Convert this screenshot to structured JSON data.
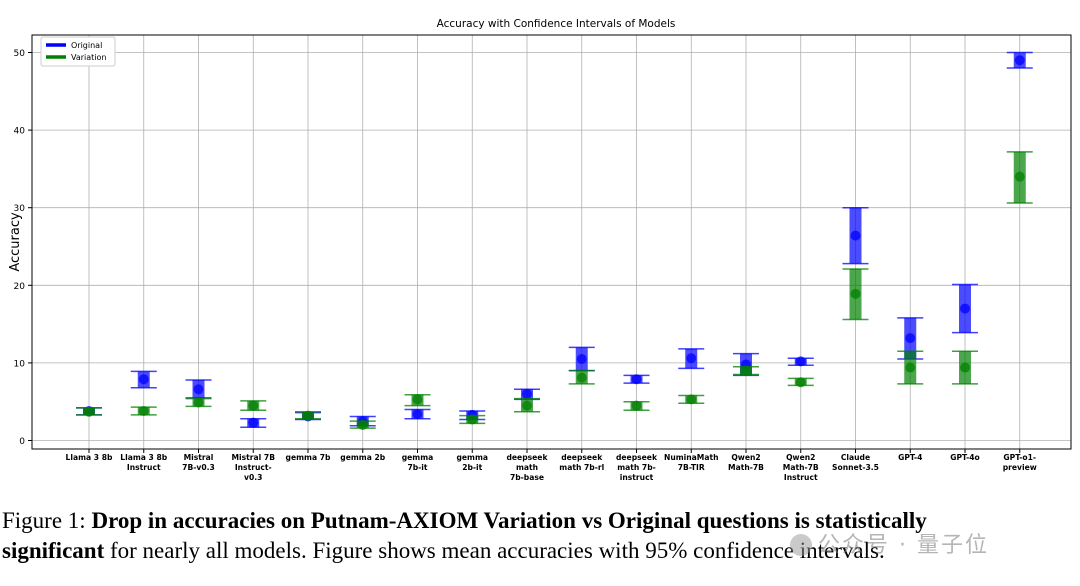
{
  "chart_data": {
    "type": "errorbar",
    "title": "Accuracy with Confidence Intervals of Models",
    "ylabel": "Accuracy",
    "xlabel": "",
    "ylim": [
      -1,
      53
    ],
    "yticks": [
      0,
      10,
      20,
      30,
      40,
      50
    ],
    "grid": true,
    "legend_position": "top-left",
    "categories": [
      [
        "Llama 3 8b"
      ],
      [
        "Llama 3 8b",
        "Instruct"
      ],
      [
        "Mistral",
        "7B-v0.3"
      ],
      [
        "Mistral 7B",
        "Instruct-",
        "v0.3"
      ],
      [
        "gemma 7b"
      ],
      [
        "gemma 2b"
      ],
      [
        "gemma",
        "7b-it"
      ],
      [
        "gemma",
        "2b-it"
      ],
      [
        "deepseek",
        "math",
        "7b-base"
      ],
      [
        "deepseek",
        "math 7b-rl"
      ],
      [
        "deepseek",
        "math 7b-",
        "instruct"
      ],
      [
        "NuminaMath",
        "7B-TIR"
      ],
      [
        "Qwen2",
        "Math-7B"
      ],
      [
        "Qwen2",
        "Math-7B",
        "Instruct"
      ],
      [
        "Claude",
        "Sonnet-3.5"
      ],
      [
        "GPT-4"
      ],
      [
        "GPT-4o"
      ],
      [
        "GPT-o1-",
        "preview"
      ]
    ],
    "series": [
      {
        "name": "Original",
        "color": "#0000ff",
        "mean": [
          3.8,
          7.9,
          6.6,
          2.3,
          3.1,
          2.5,
          3.4,
          3.3,
          6.0,
          10.5,
          7.9,
          10.6,
          9.8,
          10.2,
          26.4,
          13.2,
          17.0,
          49.0
        ],
        "lower": [
          3.3,
          6.8,
          5.5,
          1.7,
          2.7,
          1.9,
          2.8,
          2.7,
          5.3,
          9.0,
          7.4,
          9.3,
          8.4,
          9.7,
          22.8,
          10.5,
          13.9,
          48.0
        ],
        "upper": [
          4.2,
          8.9,
          7.8,
          2.8,
          3.6,
          3.1,
          4.0,
          3.8,
          6.6,
          12.0,
          8.4,
          11.8,
          11.2,
          10.6,
          30.0,
          15.8,
          20.1,
          50.0
        ]
      },
      {
        "name": "Variation",
        "color": "#008000",
        "mean": [
          3.7,
          3.8,
          4.9,
          4.5,
          3.2,
          2.0,
          5.3,
          2.7,
          4.5,
          8.1,
          4.5,
          5.3,
          9.0,
          7.5,
          18.9,
          9.4,
          9.4,
          34.0
        ],
        "lower": [
          3.3,
          3.3,
          4.4,
          3.9,
          2.8,
          1.6,
          4.5,
          2.2,
          3.7,
          7.3,
          3.9,
          4.8,
          8.5,
          7.1,
          15.6,
          7.3,
          7.3,
          30.6
        ],
        "upper": [
          4.2,
          4.3,
          5.4,
          5.1,
          3.7,
          2.5,
          5.9,
          3.2,
          5.4,
          9.0,
          5.0,
          5.8,
          9.5,
          8.0,
          22.1,
          11.5,
          11.5,
          37.2
        ]
      }
    ]
  },
  "caption": {
    "prefix": "Figure 1: ",
    "bold_1": "Drop in accuracies on Putnam-AXIOM Variation vs Original questions is statistically",
    "bold_2": "significant",
    "rest": " for nearly all models. Figure shows mean accuracies with 95% confidence intervals."
  },
  "watermark": {
    "text": "公众号 · 量子位"
  }
}
